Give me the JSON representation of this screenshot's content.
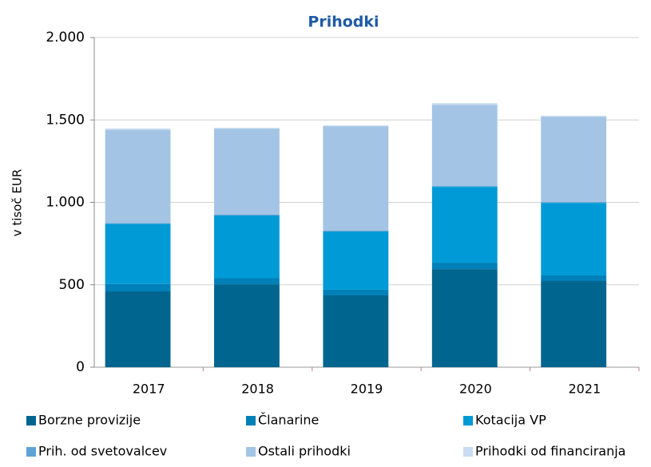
{
  "chart_data": {
    "type": "stacked_bar",
    "title": "Prihodki",
    "y_label": "v tisoč EUR",
    "categories": [
      "2017",
      "2018",
      "2019",
      "2020",
      "2021"
    ],
    "series": [
      {
        "name": "Borzne provizije",
        "color": "#00658f",
        "values": [
          460,
          503,
          436,
          595,
          523
        ]
      },
      {
        "name": "Članarine",
        "color": "#0080b8",
        "values": [
          45,
          37,
          34,
          39,
          34
        ]
      },
      {
        "name": "Kotacija VP",
        "color": "#009ad6",
        "values": [
          365,
          380,
          353,
          460,
          440
        ]
      },
      {
        "name": "Prih. od svetovalcev",
        "color": "#5fa3d3",
        "values": [
          5,
          5,
          5,
          5,
          5
        ]
      },
      {
        "name": "Ostali prihodki",
        "color": "#a3c4e5",
        "values": [
          565,
          522,
          634,
          493,
          518
        ]
      },
      {
        "name": "Prihodki od financiranja",
        "color": "#c9dcf0",
        "values": [
          8,
          5,
          5,
          10,
          5
        ]
      }
    ],
    "ylim": [
      0,
      2000
    ],
    "yticks": [
      0,
      500,
      {
        "value": 1000,
        "label": "1.000"
      },
      {
        "value": 1500,
        "label": "1.500"
      },
      {
        "value": 2000,
        "label": "2.000"
      }
    ],
    "grid": true
  }
}
